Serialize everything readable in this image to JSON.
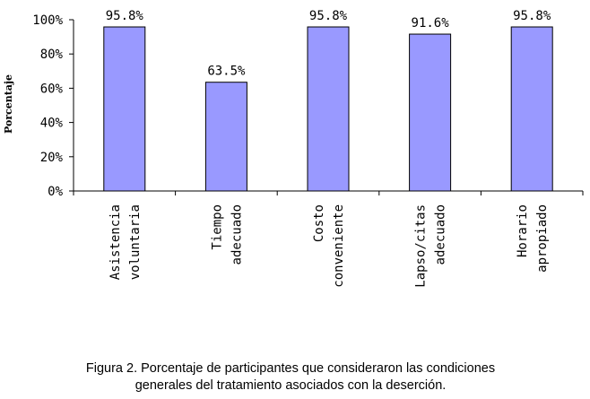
{
  "chart_data": {
    "type": "bar",
    "title": "",
    "xlabel": "",
    "ylabel": "Porcentaje",
    "ylim": [
      0,
      100
    ],
    "yticks": [
      "0%",
      "20%",
      "40%",
      "60%",
      "80%",
      "100%"
    ],
    "categories": [
      [
        "Asistencia",
        "voluntaria"
      ],
      [
        "Tiempo",
        "adecuado"
      ],
      [
        "Costo",
        "conveniente"
      ],
      [
        "Lapso/citas",
        "adecuado"
      ],
      [
        "Horario",
        "apropiado"
      ]
    ],
    "values": [
      95.8,
      63.5,
      95.8,
      91.6,
      95.8
    ],
    "data_labels": [
      "95.8%",
      "63.5%",
      "95.8%",
      "91.6%",
      "95.8%"
    ],
    "bar_color": "#9999ff",
    "grid": false,
    "legend": "none"
  },
  "caption": {
    "line1": "Figura 2. Porcentaje de participantes que consideraron las condiciones",
    "line2": "generales del tratamiento asociados con la deserción."
  }
}
